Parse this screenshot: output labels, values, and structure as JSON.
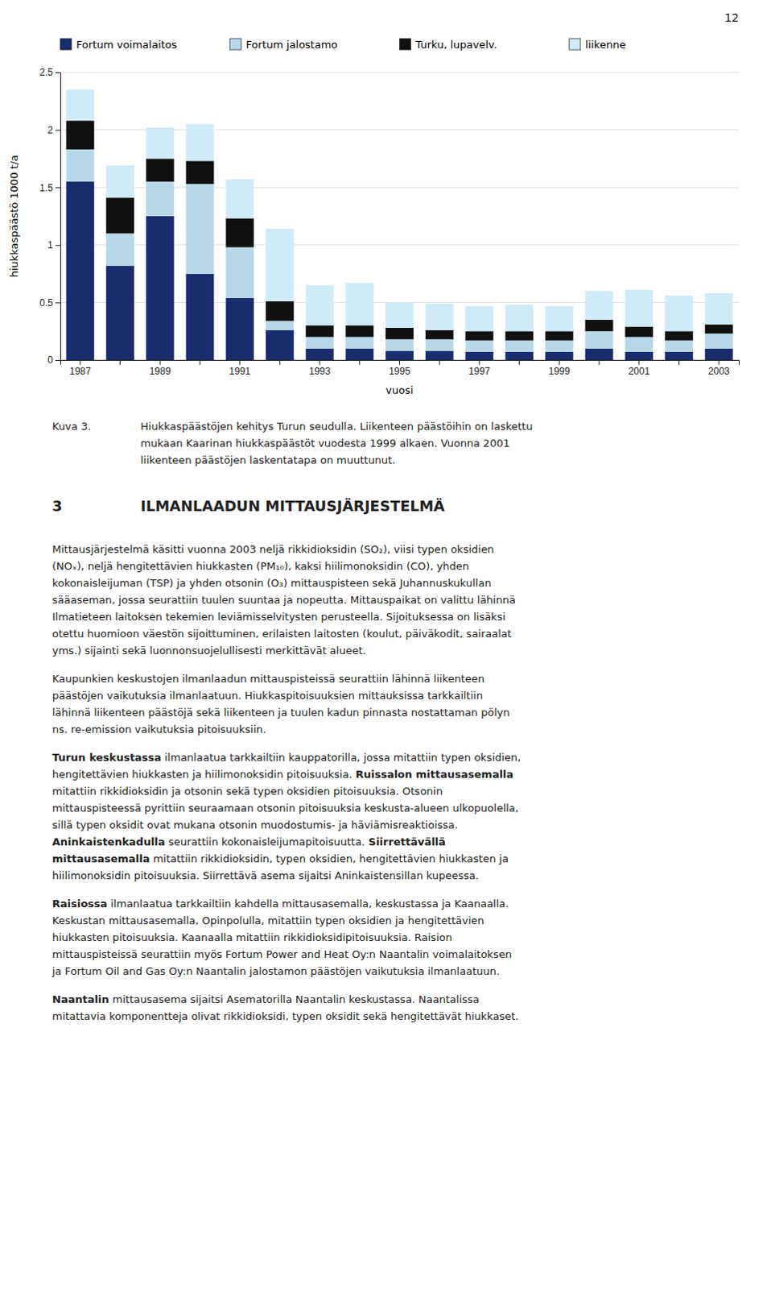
{
  "page_number": "12",
  "caption_label": "Kuva 3.",
  "caption": [
    "Hiukkaspäästöjen kehitys Turun seudulla. Liikenteen päästöihin on laskettu",
    "mukaan Kaarinan hiukkaspäästöt vuodesta 1999 alkaen. Vuonna 2001",
    "liikenteen päästöjen laskentatapa on muuttunut."
  ],
  "heading_number": "3",
  "heading": "ILMANLAADUN MITTAUSJÄRJESTELMÄ",
  "paragraphs": [
    [
      [
        {
          "text": "Mittausjärjestelmä käsitti vuonna 2003 neljä rikkidioksidin (SO₂), viisi typen oksidien",
          "bold": false
        }
      ],
      [
        {
          "text": "(NOₓ), neljä hengitettävien hiukkasten (PM₁₀), kaksi hiilimonoksidin (CO), yhden",
          "bold": false
        }
      ],
      [
        {
          "text": "kokonaisleijuman (TSP) ja yhden otsonin (O₃) mittauspisteen sekä Juhannuskukullan",
          "bold": false
        }
      ],
      [
        {
          "text": "sääaseman, jossa seurattiin tuulen suuntaa ja nopeutta. Mittauspaikat on valittu lähinnä",
          "bold": false
        }
      ],
      [
        {
          "text": "Ilmatieteen laitoksen tekemien leviämisselvitysten perusteella. Sijoituksessa on lisäksi",
          "bold": false
        }
      ],
      [
        {
          "text": "otettu huomioon väestön sijoittuminen, erilaisten laitosten (koulut, päiväkodit, sairaalat",
          "bold": false
        }
      ],
      [
        {
          "text": "yms.) sijainti sekä luonnonsuojelullisesti merkittävät alueet.",
          "bold": false
        }
      ]
    ],
    [
      [
        {
          "text": "Kaupunkien keskustojen ilmanlaadun mittauspisteissä seurattiin lähinnä liikenteen",
          "bold": false
        }
      ],
      [
        {
          "text": "päästöjen vaikutuksia ilmanlaatuun. Hiukkaspitoisuuksien mittauksissa tarkkailtiin",
          "bold": false
        }
      ],
      [
        {
          "text": "lähinnä liikenteen päästöjä sekä liikenteen ja tuulen kadun pinnasta nostattaman pölyn",
          "bold": false
        }
      ],
      [
        {
          "text": "ns. re-emission vaikutuksia pitoisuuksiin.",
          "bold": false
        }
      ]
    ],
    [
      [
        {
          "text": "Turun keskustassa",
          "bold": true
        },
        {
          "text": " ilmanlaatua tarkkailtiin kauppatorilla, jossa mitattiin typen oksidien,",
          "bold": false
        }
      ],
      [
        {
          "text": "hengitettävien hiukkasten ja hiilimonoksidin pitoisuuksia. ",
          "bold": false
        },
        {
          "text": "Ruissalon mittausasemalla",
          "bold": true
        }
      ],
      [
        {
          "text": "mitattiin rikkidioksidin ja otsonin sekä typen oksidien pitoisuuksia. Otsonin",
          "bold": false
        }
      ],
      [
        {
          "text": "mittauspisteessä pyrittiin seuraamaan otsonin pitoisuuksia keskusta-alueen ulkopuolella,",
          "bold": false
        }
      ],
      [
        {
          "text": "sillä typen oksidit ovat mukana otsonin muodostumis- ja häviämisreaktioissa.",
          "bold": false
        }
      ],
      [
        {
          "text": "Aninkaistenkadulla",
          "bold": true
        },
        {
          "text": " seurattiin kokonaisleijumapitoisuutta.",
          "bold": false
        },
        {
          "text": "Siirrettävällä",
          "bold": true
        }
      ],
      [
        {
          "text": "mittausasemalla",
          "bold": true
        },
        {
          "text": " mitattiin rikkidioksidin, typen oksidien, hengitettävien hiukkasten ja",
          "bold": false
        }
      ],
      [
        {
          "text": "hiilimonoksidin pitoisuuksia. Siirrettävä asema sijaitsi Aninkaistensillan kupeessa.",
          "bold": false
        }
      ]
    ],
    [
      [
        {
          "text": "Raisiossa",
          "bold": true
        },
        {
          "text": " ilmanlaatua tarkkailtiin kahdella mittausasemalla, keskustassa ja Kaanaalla.",
          "bold": false
        }
      ],
      [
        {
          "text": "Keskustan mittausasemalla, Opinpolulla, mitattiin typen oksidien ja hengitettävien",
          "bold": false
        }
      ],
      [
        {
          "text": "hiukkasten pitoisuuksia. Kaanaalla mitattiin rikkidioksidipitoisuuksia. Raision",
          "bold": false
        }
      ],
      [
        {
          "text": "mittauspisteissä seurattiin myös Fortum Power and Heat Oy:n Naantalin voimalaitoksen",
          "bold": false
        }
      ],
      [
        {
          "text": "ja Fortum Oil and Gas Oy:n Naantalin jalostamon päästöjen vaikutuksia ilmanlaatuun.",
          "bold": false
        }
      ]
    ],
    [
      [
        {
          "text": "Naantalin",
          "bold": true
        },
        {
          "text": " mittausasema sijaitsi Asematorilla Naantalin keskustassa. Naantalissa",
          "bold": false
        }
      ],
      [
        {
          "text": "mitattavia komponentteja olivat rikkidioksidi, typen oksidit sekä hengitettävät hiukkaset.",
          "bold": false
        }
      ]
    ]
  ],
  "chart_data": {
    "type": "bar",
    "stacked": true,
    "categories": [
      "1987",
      null,
      "1989",
      null,
      "1991",
      null,
      "1993",
      null,
      "1995",
      null,
      "1997",
      null,
      "1999",
      null,
      "2001",
      null,
      "2003"
    ],
    "series": [
      {
        "name": "Fortum voimalaitos",
        "color": "#1a2b6e",
        "values": [
          1.55,
          0.82,
          1.25,
          0.75,
          0.54,
          0.26,
          0.1,
          0.1,
          0.08,
          0.08,
          0.07,
          0.07,
          0.07,
          0.1,
          0.07,
          0.07,
          0.1
        ]
      },
      {
        "name": "Fortum jalostamo",
        "color": "#b8d8e8",
        "values": [
          0.28,
          0.28,
          0.3,
          0.78,
          0.44,
          0.08,
          0.1,
          0.1,
          0.1,
          0.1,
          0.1,
          0.1,
          0.1,
          0.15,
          0.13,
          0.1,
          0.13
        ]
      },
      {
        "name": "Turku, lupavelv.",
        "color": "#111111",
        "values": [
          0.25,
          0.31,
          0.2,
          0.2,
          0.25,
          0.17,
          0.1,
          0.1,
          0.1,
          0.08,
          0.08,
          0.08,
          0.08,
          0.1,
          0.09,
          0.08,
          0.08
        ]
      },
      {
        "name": "liikenne",
        "color": "#d0eaf8",
        "values": [
          0.27,
          0.28,
          0.27,
          0.32,
          0.34,
          0.63,
          0.35,
          0.37,
          0.22,
          0.23,
          0.22,
          0.23,
          0.22,
          0.25,
          0.32,
          0.31,
          0.27
        ]
      }
    ],
    "ylabel": "hiukkaspäästö 1000 t/a",
    "xlabel": "vuosi",
    "ylim": [
      0,
      2.5
    ],
    "yticks": [
      0,
      0.5,
      1,
      1.5,
      2,
      2.5
    ],
    "grid": true,
    "legend": "top"
  }
}
